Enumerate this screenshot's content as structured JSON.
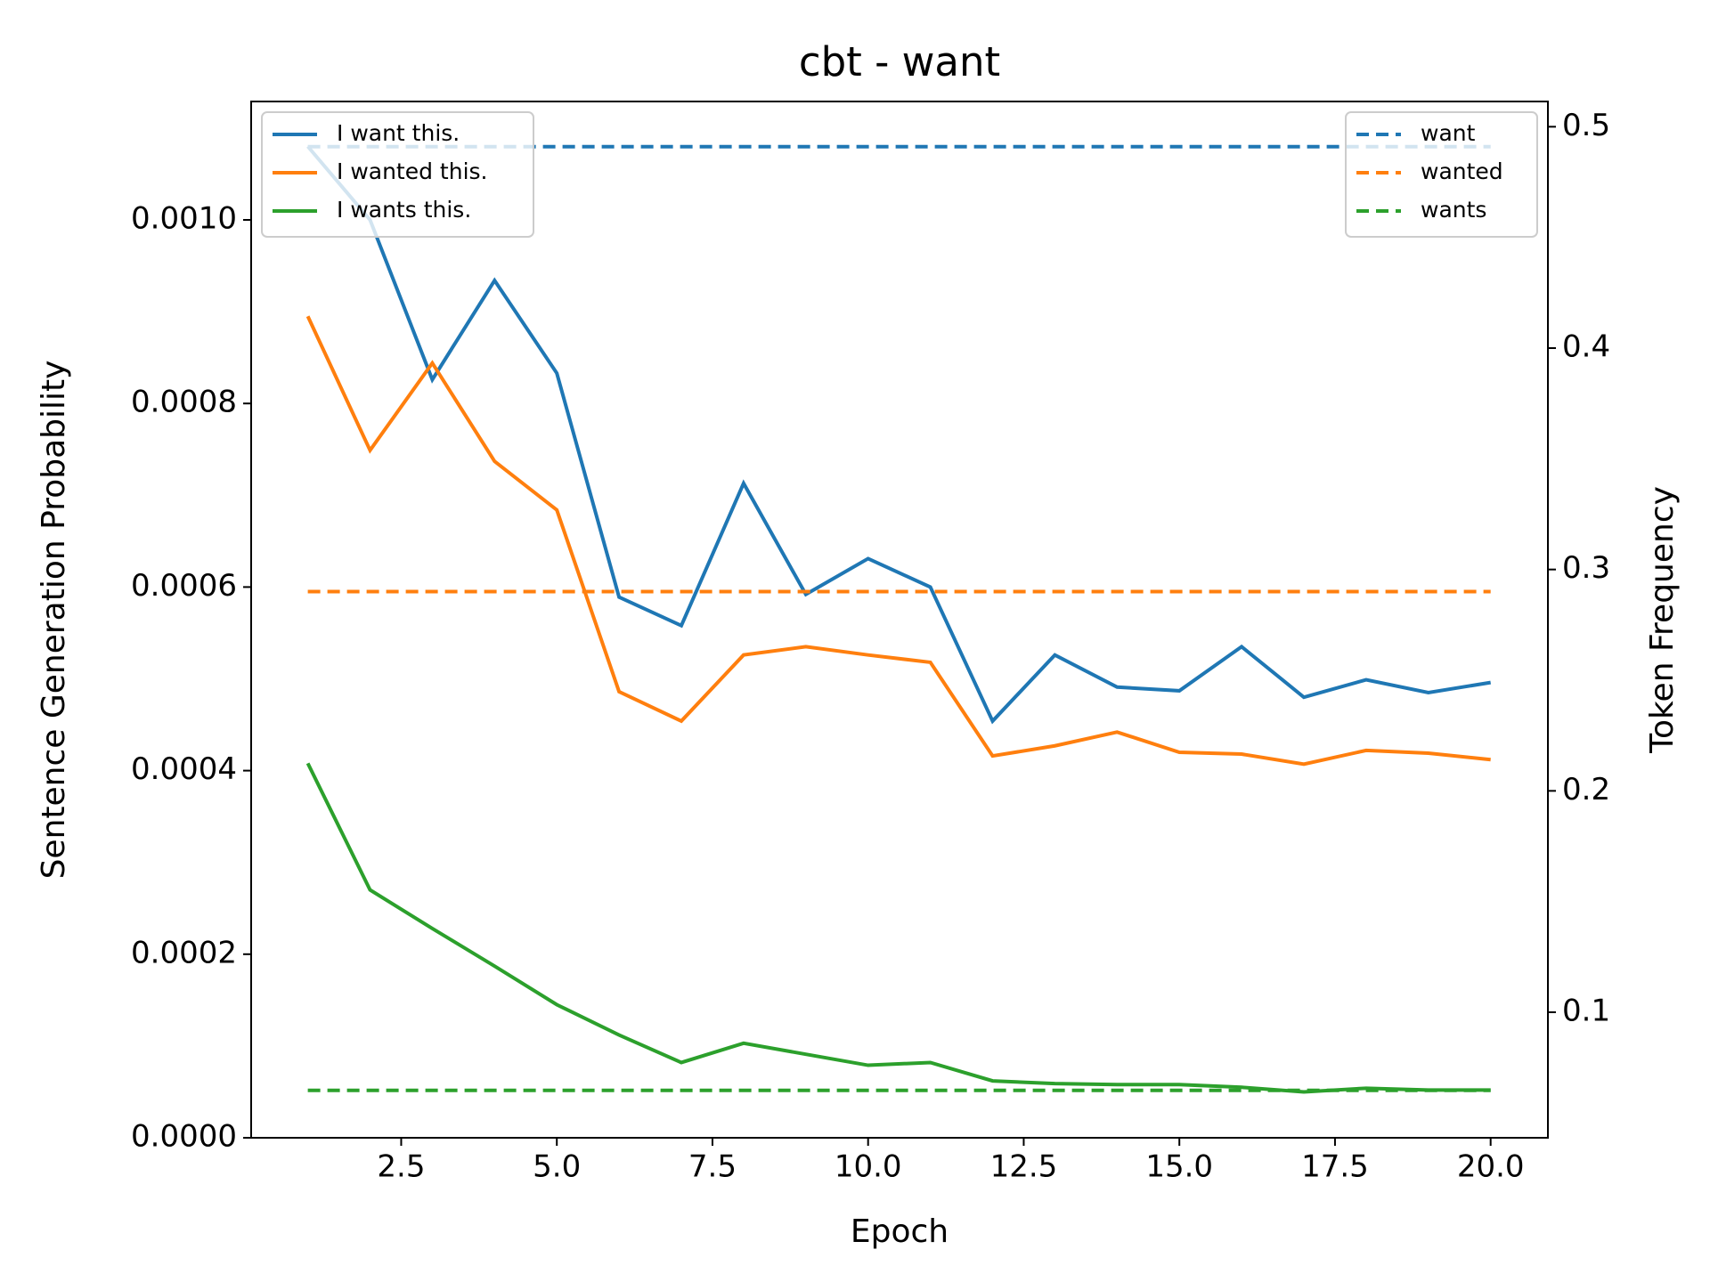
{
  "chart_data": {
    "type": "line",
    "title": "cbt - want",
    "x_label": "Epoch",
    "y_label": "Sentence Generation Probability",
    "y2_label": "Token Frequency",
    "x": [
      1,
      2,
      3,
      4,
      5,
      6,
      7,
      8,
      9,
      10,
      11,
      12,
      13,
      14,
      15,
      16,
      17,
      18,
      19,
      20
    ],
    "xlim": [
      0.09,
      20.92
    ],
    "xticks": [
      2.5,
      {
        "value": 5,
        "label": "5.0"
      },
      7.5,
      {
        "value": 10,
        "label": "10.0"
      },
      12.5,
      {
        "value": 15,
        "label": "15.0"
      },
      17.5,
      {
        "value": 20,
        "label": "20.0"
      }
    ],
    "ylim": [
      0,
      0.001129
    ],
    "yticks": [
      {
        "value": 0,
        "label": "0.0000"
      },
      0.0002,
      0.0004,
      0.0006,
      0.0008,
      {
        "value": 0.001,
        "label": "0.0010"
      }
    ],
    "y2lim": [
      0.0433,
      0.5114
    ],
    "y2ticks": [
      0.1,
      0.2,
      0.3,
      0.4,
      0.5
    ],
    "legend": "upper left",
    "legend2": "upper right",
    "series": [
      {
        "name": "I want this.",
        "color": "#1f77b4",
        "linestyle": "solid",
        "values": [
          0.00108,
          0.001,
          0.000826,
          0.000934,
          0.000833,
          0.000589,
          0.000558,
          0.000713,
          0.000592,
          0.000631,
          0.0006,
          0.000454,
          0.000526,
          0.000491,
          0.000487,
          0.000535,
          0.00048,
          0.000499,
          0.000485,
          0.000496
        ]
      },
      {
        "name": "I wanted this.",
        "color": "#ff7f0e",
        "linestyle": "solid",
        "values": [
          0.000895,
          0.000749,
          0.000844,
          0.000737,
          0.000684,
          0.000486,
          0.000454,
          0.000526,
          0.000535,
          0.000526,
          0.000518,
          0.000416,
          0.000427,
          0.000442,
          0.00042,
          0.000418,
          0.000407,
          0.000422,
          0.000419,
          0.000412
        ]
      },
      {
        "name": "I wants this.",
        "color": "#2ca02c",
        "linestyle": "solid",
        "values": [
          0.000408,
          0.00027,
          0.000228,
          0.000187,
          0.000145,
          0.000112,
          8.2e-05,
          0.000103,
          9.1e-05,
          7.9e-05,
          8.2e-05,
          6.2e-05,
          5.9e-05,
          5.8e-05,
          5.8e-05,
          5.5e-05,
          5e-05,
          5.4e-05,
          5.2e-05,
          5.2e-05
        ]
      },
      {
        "name": "want",
        "color": "#1f77b4",
        "linestyle": "dashed",
        "axis": "y2",
        "values": [
          0.491,
          0.491,
          0.491,
          0.491,
          0.491,
          0.491,
          0.491,
          0.491,
          0.491,
          0.491,
          0.491,
          0.491,
          0.491,
          0.491,
          0.491,
          0.491,
          0.491,
          0.491,
          0.491,
          0.491
        ]
      },
      {
        "name": "wanted",
        "color": "#ff7f0e",
        "linestyle": "dashed",
        "axis": "y2",
        "values": [
          0.29,
          0.29,
          0.29,
          0.29,
          0.29,
          0.29,
          0.29,
          0.29,
          0.29,
          0.29,
          0.29,
          0.29,
          0.29,
          0.29,
          0.29,
          0.29,
          0.29,
          0.29,
          0.29,
          0.29
        ]
      },
      {
        "name": "wants",
        "color": "#2ca02c",
        "linestyle": "dashed",
        "axis": "y2",
        "values": [
          0.0647,
          0.0647,
          0.0647,
          0.0647,
          0.0647,
          0.0647,
          0.0647,
          0.0647,
          0.0647,
          0.0647,
          0.0647,
          0.0647,
          0.0647,
          0.0647,
          0.0647,
          0.0647,
          0.0647,
          0.0647,
          0.0647,
          0.0647
        ]
      }
    ]
  }
}
